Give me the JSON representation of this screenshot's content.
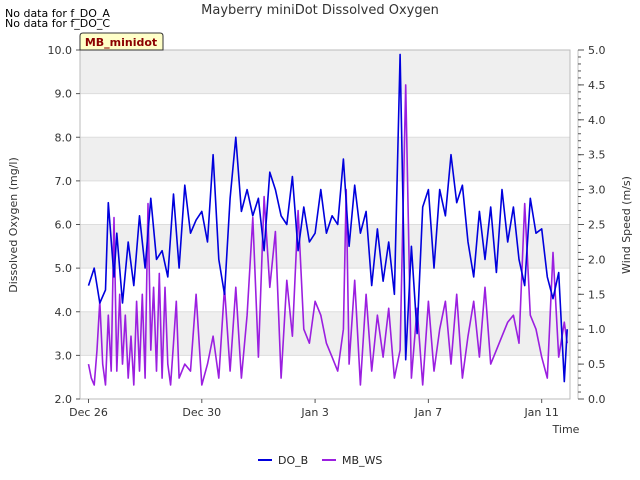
{
  "notes": [
    "No data for f_DO_A",
    "No data for f_DO_C"
  ],
  "badge": "MB_minidot",
  "colors": {
    "do_b": "#0000dd",
    "mb_ws": "#9b1fe0",
    "band": "#efefef",
    "badge_bg": "#ffffc8"
  },
  "chart_data": {
    "type": "line",
    "title": "Mayberry miniDot Dissolved Oxygen",
    "xlabel": "Time",
    "ylabel": "Dissolved Oxygen (mg/l)",
    "y2label": "Wind Speed (m/s)",
    "xlim": [
      -0.3,
      17.0
    ],
    "ylim": [
      2.0,
      10.0
    ],
    "y2lim": [
      0.0,
      5.0
    ],
    "x_ticks": [
      {
        "x": 0,
        "label": "Dec 26"
      },
      {
        "x": 4,
        "label": "Dec 30"
      },
      {
        "x": 8,
        "label": "Jan 3"
      },
      {
        "x": 12,
        "label": "Jan 7"
      },
      {
        "x": 16,
        "label": "Jan 11"
      }
    ],
    "y_ticks": [
      "2.0",
      "3.0",
      "4.0",
      "5.0",
      "6.0",
      "7.0",
      "8.0",
      "9.0",
      "10.0"
    ],
    "y2_ticks": [
      "0.0",
      "0.5",
      "1.0",
      "1.5",
      "2.0",
      "2.5",
      "3.0",
      "3.5",
      "4.0",
      "4.5",
      "5.0"
    ],
    "series": [
      {
        "name": "DO_B",
        "axis": "left",
        "x": [
          0.0,
          0.2,
          0.4,
          0.6,
          0.7,
          0.9,
          1.0,
          1.2,
          1.4,
          1.6,
          1.8,
          2.0,
          2.2,
          2.4,
          2.6,
          2.8,
          3.0,
          3.2,
          3.4,
          3.6,
          3.8,
          4.0,
          4.2,
          4.4,
          4.6,
          4.8,
          5.0,
          5.2,
          5.4,
          5.6,
          5.8,
          6.0,
          6.2,
          6.4,
          6.6,
          6.8,
          7.0,
          7.2,
          7.4,
          7.6,
          7.8,
          8.0,
          8.2,
          8.4,
          8.6,
          8.8,
          9.0,
          9.2,
          9.4,
          9.6,
          9.8,
          10.0,
          10.2,
          10.4,
          10.6,
          10.8,
          11.0,
          11.1,
          11.2,
          11.4,
          11.6,
          11.8,
          12.0,
          12.2,
          12.4,
          12.6,
          12.8,
          13.0,
          13.2,
          13.4,
          13.6,
          13.8,
          14.0,
          14.2,
          14.4,
          14.6,
          14.8,
          15.0,
          15.2,
          15.4,
          15.6,
          15.8,
          16.0,
          16.2,
          16.4,
          16.6,
          16.8,
          16.9
        ],
        "y": [
          4.6,
          5.0,
          4.2,
          4.5,
          6.5,
          4.8,
          5.8,
          4.2,
          5.6,
          4.6,
          6.2,
          5.0,
          6.6,
          5.2,
          5.4,
          4.8,
          6.7,
          5.0,
          6.9,
          5.8,
          6.1,
          6.3,
          5.6,
          7.6,
          5.2,
          4.4,
          6.6,
          8.0,
          6.3,
          6.8,
          6.2,
          6.6,
          5.4,
          7.2,
          6.8,
          6.2,
          6.0,
          7.1,
          5.4,
          6.4,
          5.6,
          5.8,
          6.8,
          5.8,
          6.2,
          6.0,
          7.5,
          5.5,
          6.9,
          5.8,
          6.3,
          4.6,
          5.9,
          4.7,
          5.6,
          4.4,
          9.9,
          6.6,
          2.9,
          5.5,
          3.5,
          6.4,
          6.8,
          5.0,
          6.8,
          6.2,
          7.6,
          6.5,
          6.9,
          5.6,
          4.8,
          6.3,
          5.2,
          6.4,
          4.9,
          6.8,
          5.6,
          6.4,
          5.2,
          4.6,
          6.6,
          5.8,
          5.9,
          4.8,
          4.3,
          4.9,
          2.4,
          3.6
        ]
      },
      {
        "name": "MB_WS",
        "axis": "right",
        "x": [
          0.0,
          0.1,
          0.2,
          0.3,
          0.4,
          0.5,
          0.6,
          0.7,
          0.8,
          0.9,
          1.0,
          1.1,
          1.2,
          1.3,
          1.4,
          1.5,
          1.6,
          1.7,
          1.8,
          1.9,
          2.0,
          2.1,
          2.2,
          2.3,
          2.4,
          2.5,
          2.6,
          2.7,
          2.8,
          2.9,
          3.0,
          3.1,
          3.2,
          3.4,
          3.6,
          3.8,
          4.0,
          4.2,
          4.4,
          4.6,
          4.8,
          5.0,
          5.2,
          5.4,
          5.6,
          5.8,
          6.0,
          6.2,
          6.4,
          6.6,
          6.8,
          7.0,
          7.2,
          7.4,
          7.6,
          7.8,
          8.0,
          8.2,
          8.4,
          8.6,
          8.8,
          9.0,
          9.1,
          9.2,
          9.4,
          9.6,
          9.8,
          10.0,
          10.2,
          10.4,
          10.6,
          10.8,
          11.0,
          11.2,
          11.4,
          11.6,
          11.8,
          12.0,
          12.2,
          12.4,
          12.6,
          12.8,
          13.0,
          13.2,
          13.4,
          13.6,
          13.8,
          14.0,
          14.2,
          14.4,
          14.6,
          14.8,
          15.0,
          15.2,
          15.4,
          15.6,
          15.8,
          16.0,
          16.2,
          16.4,
          16.6,
          16.8,
          16.9
        ],
        "y": [
          0.5,
          0.3,
          0.2,
          0.7,
          1.4,
          0.5,
          0.2,
          1.2,
          0.4,
          2.6,
          0.4,
          1.5,
          0.5,
          1.2,
          0.3,
          0.9,
          0.2,
          1.4,
          0.4,
          1.5,
          0.3,
          2.8,
          0.7,
          1.6,
          0.4,
          1.8,
          0.3,
          1.6,
          0.5,
          0.2,
          0.8,
          1.4,
          0.3,
          0.5,
          0.4,
          1.5,
          0.2,
          0.5,
          0.9,
          0.3,
          1.6,
          0.4,
          1.6,
          0.3,
          1.2,
          2.6,
          0.6,
          2.9,
          1.6,
          2.4,
          0.3,
          1.7,
          0.9,
          2.7,
          1.0,
          0.8,
          1.4,
          1.2,
          0.8,
          0.6,
          0.4,
          1.0,
          3.0,
          0.5,
          1.7,
          0.2,
          1.5,
          0.4,
          1.2,
          0.6,
          1.3,
          0.3,
          0.7,
          4.5,
          0.3,
          1.3,
          0.2,
          1.4,
          0.4,
          1.0,
          1.4,
          0.5,
          1.5,
          0.3,
          0.9,
          1.4,
          0.6,
          1.6,
          0.5,
          0.7,
          0.9,
          1.1,
          1.2,
          0.8,
          2.8,
          1.2,
          1.0,
          0.6,
          0.3,
          2.1,
          0.6,
          1.1,
          0.8
        ]
      }
    ],
    "legend": [
      "DO_B",
      "MB_WS"
    ]
  }
}
